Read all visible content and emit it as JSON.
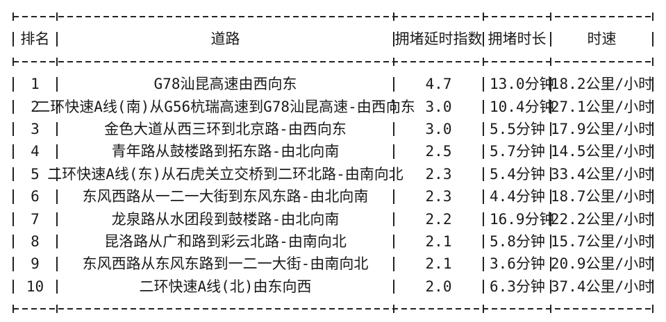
{
  "chart_data": {
    "type": "table",
    "title": "",
    "columns": [
      "排名",
      "道路",
      "拥堵延时指数",
      "拥堵时长",
      "时速"
    ],
    "rows": [
      [
        "1",
        "G78汕昆高速由西向东",
        "4.7",
        "13.0分钟",
        "18.2公里/小时"
      ],
      [
        "2",
        "二环快速A线(南)从G56杭瑞高速到G78汕昆高速-由西向东",
        "3.0",
        "10.4分钟",
        "27.1公里/小时"
      ],
      [
        "3",
        "金色大道从西三环到北京路-由西向东",
        "3.0",
        "5.5分钟",
        "17.9公里/小时"
      ],
      [
        "4",
        "青年路从鼓楼路到拓东路-由北向南",
        "2.5",
        "5.7分钟",
        "14.5公里/小时"
      ],
      [
        "5",
        "二环快速A线(东)从石虎关立交桥到二环北路-由南向北",
        "2.3",
        "5.4分钟",
        "33.4公里/小时"
      ],
      [
        "6",
        "东风西路从一二一大街到东风东路-由北向南",
        "2.3",
        "4.4分钟",
        "18.7公里/小时"
      ],
      [
        "7",
        "龙泉路从水团段到鼓楼路-由北向南",
        "2.2",
        "16.9分钟",
        "22.2公里/小时"
      ],
      [
        "8",
        "昆洛路从广和路到彩云北路-由南向北",
        "2.1",
        "5.8分钟",
        "15.7公里/小时"
      ],
      [
        "9",
        "东风西路从东风东路到一二一大街-由南向北",
        "2.1",
        "3.6分钟",
        "20.9公里/小时"
      ],
      [
        "10",
        "二环快速A线(北)由东向西",
        "2.0",
        "6.3分钟",
        "37.4公里/小时"
      ]
    ],
    "units": {
      "拥堵时长": "分钟",
      "时速": "公里/小时"
    },
    "layout": {
      "grid": "ascii-dashed-frame",
      "header_separator": true,
      "row_rules": false
    }
  }
}
